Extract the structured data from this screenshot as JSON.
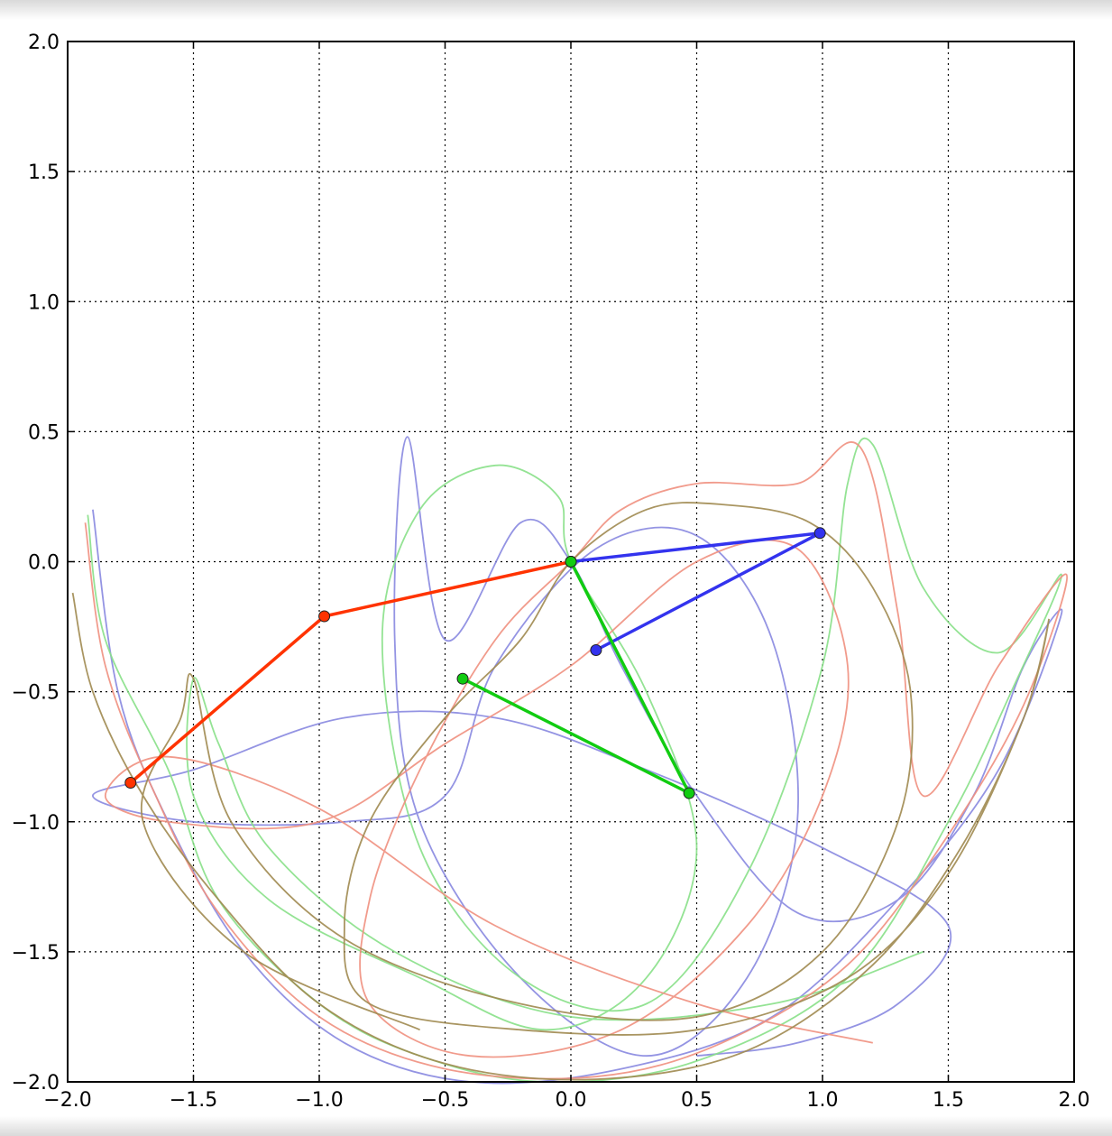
{
  "chart_data": {
    "type": "line",
    "title": "",
    "xlabel": "",
    "ylabel": "",
    "xlim": [
      -2.0,
      2.0
    ],
    "ylim": [
      -2.0,
      2.0
    ],
    "grid": true,
    "x_ticks": [
      "−2.0",
      "−1.5",
      "−1.0",
      "−0.5",
      "0.0",
      "0.5",
      "1.0",
      "1.5",
      "2.0"
    ],
    "y_ticks": [
      "2.0",
      "1.5",
      "1.0",
      "0.5",
      "0.0",
      "−0.5",
      "−1.0",
      "−1.5",
      "−2.0"
    ],
    "pendulums": [
      {
        "color": "#ff3300",
        "points": [
          [
            0.0,
            0.0
          ],
          [
            -0.98,
            -0.21
          ],
          [
            -1.75,
            -0.85
          ]
        ]
      },
      {
        "color": "#3333ee",
        "points": [
          [
            0.0,
            0.0
          ],
          [
            0.99,
            0.11
          ],
          [
            0.1,
            -0.34
          ]
        ]
      },
      {
        "color": "#11cc11",
        "points": [
          [
            0.0,
            0.0
          ],
          [
            0.47,
            -0.89
          ],
          [
            -0.43,
            -0.45
          ]
        ]
      }
    ],
    "trails": [
      {
        "color": "#8888e0",
        "points": [
          [
            -1.9,
            0.2
          ],
          [
            -1.8,
            -0.5
          ],
          [
            -1.6,
            -1.0
          ],
          [
            -1.3,
            -1.5
          ],
          [
            -0.9,
            -1.85
          ],
          [
            -0.4,
            -2.0
          ],
          [
            0.2,
            -1.95
          ],
          [
            0.8,
            -1.75
          ],
          [
            1.3,
            -1.3
          ],
          [
            1.7,
            -0.8
          ],
          [
            1.95,
            -0.2
          ],
          [
            1.8,
            -0.4
          ],
          [
            1.6,
            -0.9
          ],
          [
            1.3,
            -1.3
          ],
          [
            0.9,
            -1.35
          ],
          [
            0.5,
            -0.9
          ],
          [
            0.2,
            -0.4
          ],
          [
            0.0,
            0.0
          ],
          [
            -0.2,
            0.15
          ],
          [
            -0.5,
            -0.3
          ],
          [
            -0.65,
            0.48
          ],
          [
            -0.7,
            -0.3
          ],
          [
            -0.6,
            -1.0
          ],
          [
            -0.2,
            -1.6
          ],
          [
            0.3,
            -1.9
          ],
          [
            0.7,
            -1.6
          ],
          [
            0.9,
            -1.0
          ],
          [
            0.8,
            -0.3
          ],
          [
            0.5,
            0.1
          ],
          [
            0.1,
            0.05
          ],
          [
            -0.3,
            -0.4
          ],
          [
            -0.5,
            -0.9
          ],
          [
            -0.9,
            -1.0
          ],
          [
            -1.5,
            -1.0
          ],
          [
            -1.9,
            -0.9
          ],
          [
            -1.5,
            -0.8
          ],
          [
            -0.9,
            -0.6
          ],
          [
            -0.3,
            -0.6
          ],
          [
            0.3,
            -0.8
          ],
          [
            1.0,
            -1.1
          ],
          [
            1.5,
            -1.4
          ],
          [
            1.3,
            -1.7
          ],
          [
            0.9,
            -1.85
          ],
          [
            0.5,
            -1.9
          ]
        ]
      },
      {
        "color": "#88e088",
        "points": [
          [
            -1.92,
            0.18
          ],
          [
            -1.85,
            -0.3
          ],
          [
            -1.6,
            -0.8
          ],
          [
            -1.4,
            -1.3
          ],
          [
            -1.0,
            -1.7
          ],
          [
            -0.6,
            -1.9
          ],
          [
            -0.1,
            -2.0
          ],
          [
            0.5,
            -1.92
          ],
          [
            1.1,
            -1.6
          ],
          [
            1.5,
            -1.0
          ],
          [
            1.75,
            -0.5
          ],
          [
            1.95,
            -0.05
          ],
          [
            1.7,
            -0.35
          ],
          [
            1.4,
            -0.1
          ],
          [
            1.2,
            0.45
          ],
          [
            1.1,
            0.3
          ],
          [
            1.0,
            -0.4
          ],
          [
            0.7,
            -1.2
          ],
          [
            0.3,
            -1.7
          ],
          [
            -0.2,
            -1.6
          ],
          [
            -0.6,
            -1.1
          ],
          [
            -0.75,
            -0.3
          ],
          [
            -0.6,
            0.2
          ],
          [
            -0.3,
            0.37
          ],
          [
            -0.05,
            0.25
          ],
          [
            0.0,
            0.0
          ],
          [
            0.3,
            -0.5
          ],
          [
            0.5,
            -1.1
          ],
          [
            0.3,
            -1.6
          ],
          [
            -0.1,
            -1.8
          ],
          [
            -0.6,
            -1.6
          ],
          [
            -1.2,
            -1.3
          ],
          [
            -1.5,
            -0.9
          ],
          [
            -1.5,
            -0.45
          ],
          [
            -1.4,
            -0.7
          ],
          [
            -1.2,
            -1.1
          ],
          [
            -0.7,
            -1.5
          ],
          [
            0.0,
            -1.75
          ],
          [
            0.8,
            -1.7
          ],
          [
            1.4,
            -1.5
          ]
        ]
      },
      {
        "color": "#f09080",
        "points": [
          [
            -1.93,
            0.15
          ],
          [
            -1.85,
            -0.4
          ],
          [
            -1.65,
            -0.9
          ],
          [
            -1.4,
            -1.35
          ],
          [
            -1.0,
            -1.75
          ],
          [
            -0.5,
            -1.95
          ],
          [
            0.1,
            -1.98
          ],
          [
            0.6,
            -1.85
          ],
          [
            1.1,
            -1.55
          ],
          [
            1.5,
            -1.05
          ],
          [
            1.8,
            -0.55
          ],
          [
            1.97,
            -0.05
          ],
          [
            1.7,
            -0.4
          ],
          [
            1.4,
            -0.9
          ],
          [
            1.3,
            -0.2
          ],
          [
            1.15,
            0.44
          ],
          [
            0.9,
            0.3
          ],
          [
            0.5,
            0.3
          ],
          [
            0.2,
            0.2
          ],
          [
            0.0,
            0.0
          ],
          [
            -0.3,
            -0.3
          ],
          [
            -0.6,
            -0.8
          ],
          [
            -0.8,
            -1.3
          ],
          [
            -0.8,
            -1.7
          ],
          [
            -0.4,
            -1.9
          ],
          [
            0.2,
            -1.8
          ],
          [
            0.7,
            -1.4
          ],
          [
            1.0,
            -0.9
          ],
          [
            1.1,
            -0.4
          ],
          [
            0.9,
            0.05
          ],
          [
            0.5,
            0.0
          ],
          [
            0.0,
            -0.4
          ],
          [
            -0.5,
            -0.7
          ],
          [
            -1.0,
            -1.0
          ],
          [
            -1.6,
            -1.0
          ],
          [
            -1.85,
            -0.9
          ],
          [
            -1.6,
            -0.75
          ],
          [
            -1.0,
            -0.95
          ],
          [
            -0.3,
            -1.4
          ],
          [
            0.5,
            -1.7
          ],
          [
            1.2,
            -1.85
          ]
        ]
      },
      {
        "color": "#a08a50",
        "points": [
          [
            -1.98,
            -0.12
          ],
          [
            -1.9,
            -0.5
          ],
          [
            -1.7,
            -0.9
          ],
          [
            -1.4,
            -1.3
          ],
          [
            -1.0,
            -1.7
          ],
          [
            -0.5,
            -1.93
          ],
          [
            0.1,
            -1.99
          ],
          [
            0.7,
            -1.88
          ],
          [
            1.2,
            -1.55
          ],
          [
            1.55,
            -1.1
          ],
          [
            1.8,
            -0.6
          ],
          [
            1.9,
            -0.22
          ],
          [
            1.8,
            -0.6
          ],
          [
            1.5,
            -1.2
          ],
          [
            1.1,
            -1.6
          ],
          [
            0.5,
            -1.8
          ],
          [
            -0.2,
            -1.8
          ],
          [
            -0.8,
            -1.7
          ],
          [
            -0.9,
            -1.4
          ],
          [
            -0.8,
            -1.0
          ],
          [
            -0.5,
            -0.6
          ],
          [
            -0.2,
            -0.3
          ],
          [
            0.0,
            0.0
          ],
          [
            0.3,
            0.2
          ],
          [
            0.6,
            0.22
          ],
          [
            0.95,
            0.15
          ],
          [
            1.2,
            -0.1
          ],
          [
            1.35,
            -0.5
          ],
          [
            1.3,
            -1.0
          ],
          [
            1.0,
            -1.5
          ],
          [
            0.5,
            -1.75
          ],
          [
            -0.2,
            -1.7
          ],
          [
            -0.9,
            -1.45
          ],
          [
            -1.35,
            -1.0
          ],
          [
            -1.5,
            -0.45
          ],
          [
            -1.55,
            -0.6
          ],
          [
            -1.7,
            -1.0
          ],
          [
            -1.3,
            -1.5
          ],
          [
            -0.6,
            -1.8
          ]
        ]
      }
    ]
  }
}
